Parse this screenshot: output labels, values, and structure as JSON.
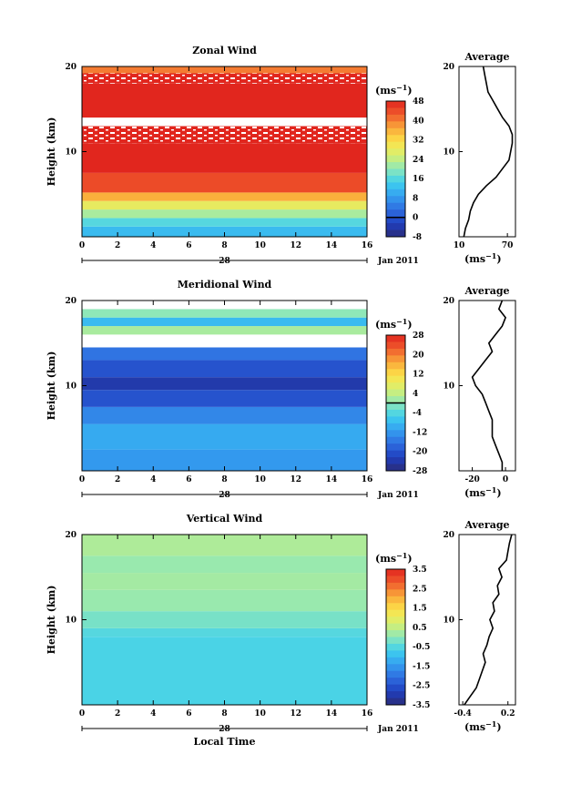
{
  "chart_data": [
    {
      "type": "heatmap",
      "title": "Zonal Wind",
      "ylabel": "Height (km)",
      "x_ticks": [
        "0",
        "2",
        "4",
        "6",
        "8",
        "10",
        "12",
        "14",
        "16"
      ],
      "y_ticks": [
        "10",
        "20"
      ],
      "xlim": [
        0,
        16
      ],
      "ylim": [
        0,
        20
      ],
      "date_day": "28",
      "date_label": "Jan 2011",
      "colorbar_unit": "(ms",
      "unit_exp": "−1",
      "colorbar_ticks": [
        "48",
        "40",
        "32",
        "24",
        "16",
        "8",
        "0",
        "-8"
      ],
      "colorbar_range": [
        -8,
        48
      ],
      "contour": "0",
      "bands": [
        {
          "from": 0,
          "to": 1.2,
          "value": 12
        },
        {
          "from": 1.2,
          "to": 2.2,
          "value": 16
        },
        {
          "from": 2.2,
          "to": 3.2,
          "value": 22
        },
        {
          "from": 3.2,
          "to": 4.2,
          "value": 28
        },
        {
          "from": 4.2,
          "to": 5.2,
          "value": 36
        },
        {
          "from": 5.2,
          "to": 7.5,
          "value": 44
        },
        {
          "from": 7.5,
          "to": 11,
          "value": 48
        },
        {
          "from": 11,
          "to": 13,
          "value": 48,
          "sparse": true
        },
        {
          "from": 13,
          "to": 14,
          "value": null
        },
        {
          "from": 14,
          "to": 18,
          "value": 48
        },
        {
          "from": 18,
          "to": 19.2,
          "value": 48,
          "sparse": true
        },
        {
          "from": 19.2,
          "to": 20,
          "value": 40
        }
      ],
      "average_profile": {
        "title": "Average",
        "x_ticks": [
          "10",
          "70"
        ],
        "xlim": [
          10,
          80
        ],
        "unit": "(ms",
        "unit_exp": "−1",
        "height": [
          0,
          1,
          2,
          3,
          4,
          5,
          6,
          7,
          8,
          9,
          10,
          11,
          12,
          13,
          14,
          15,
          16,
          17,
          18,
          19,
          20
        ],
        "values": [
          16,
          18,
          22,
          24,
          28,
          34,
          44,
          56,
          64,
          72,
          74,
          76,
          76,
          72,
          64,
          58,
          52,
          46,
          44,
          42,
          40
        ]
      }
    },
    {
      "type": "heatmap",
      "title": "Meridional Wind",
      "ylabel": "Height (km)",
      "x_ticks": [
        "0",
        "2",
        "4",
        "6",
        "8",
        "10",
        "12",
        "14",
        "16"
      ],
      "y_ticks": [
        "10",
        "20"
      ],
      "xlim": [
        0,
        16
      ],
      "ylim": [
        0,
        20
      ],
      "date_day": "28",
      "date_label": "Jan 2011",
      "colorbar_unit": "(ms",
      "unit_exp": "−1",
      "colorbar_ticks": [
        "28",
        "20",
        "12",
        "4",
        "-4",
        "-12",
        "-20",
        "-28"
      ],
      "colorbar_range": [
        -28,
        28
      ],
      "contour": "0",
      "bands": [
        {
          "from": 0,
          "to": 2.5,
          "value": -12
        },
        {
          "from": 2.5,
          "to": 5.5,
          "value": -10
        },
        {
          "from": 5.5,
          "to": 7.5,
          "value": -14
        },
        {
          "from": 7.5,
          "to": 9.5,
          "value": -20
        },
        {
          "from": 9.5,
          "to": 11,
          "value": -24
        },
        {
          "from": 11,
          "to": 13,
          "value": -20
        },
        {
          "from": 13,
          "to": 14.5,
          "value": -16
        },
        {
          "from": 14.5,
          "to": 16,
          "value": null
        },
        {
          "from": 16,
          "to": 17,
          "value": 2
        },
        {
          "from": 17,
          "to": 18,
          "value": -8
        },
        {
          "from": 18,
          "to": 19,
          "value": 0
        },
        {
          "from": 19,
          "to": 20,
          "value": null
        }
      ],
      "average_profile": {
        "title": "Average",
        "x_ticks": [
          "-20",
          "0"
        ],
        "xlim": [
          -28,
          6
        ],
        "unit": "(ms",
        "unit_exp": "−1",
        "height": [
          0,
          1,
          2,
          3,
          4,
          5,
          6,
          7,
          8,
          9,
          10,
          11,
          12,
          13,
          14,
          15,
          16,
          17,
          18,
          19,
          20
        ],
        "values": [
          -2,
          -2,
          -4,
          -6,
          -8,
          -8,
          -8,
          -10,
          -12,
          -14,
          -18,
          -20,
          -16,
          -12,
          -8,
          -10,
          -6,
          -2,
          0,
          -4,
          -2
        ]
      }
    },
    {
      "type": "heatmap",
      "title": "Vertical Wind",
      "xlabel": "Local Time",
      "ylabel": "Height (km)",
      "x_ticks": [
        "0",
        "2",
        "4",
        "6",
        "8",
        "10",
        "12",
        "14",
        "16"
      ],
      "y_ticks": [
        "10",
        "20"
      ],
      "xlim": [
        0,
        16
      ],
      "ylim": [
        0,
        20
      ],
      "date_day": "28",
      "date_label": "Jan 2011",
      "colorbar_unit": "(ms",
      "unit_exp": "−1",
      "colorbar_ticks": [
        "3.5",
        "2.5",
        "1.5",
        "0.5",
        "-0.5",
        "-1.5",
        "-2.5",
        "-3.5"
      ],
      "colorbar_range": [
        -3.5,
        3.5
      ],
      "bands": [
        {
          "from": 0,
          "to": 8,
          "value": -0.6
        },
        {
          "from": 8,
          "to": 9,
          "value": -0.5
        },
        {
          "from": 9,
          "to": 11,
          "value": -0.2
        },
        {
          "from": 11,
          "to": 13.5,
          "value": 0.1
        },
        {
          "from": 13.5,
          "to": 15.5,
          "value": 0.2
        },
        {
          "from": 15.5,
          "to": 17.5,
          "value": 0.1
        },
        {
          "from": 17.5,
          "to": 20,
          "value": 0.3
        }
      ],
      "average_profile": {
        "title": "Average",
        "x_ticks": [
          "-0.4",
          "0.2"
        ],
        "xlim": [
          -0.45,
          0.3
        ],
        "unit": "(ms",
        "unit_exp": "−1",
        "height": [
          0,
          1,
          2,
          3,
          4,
          5,
          6,
          7,
          8,
          9,
          10,
          11,
          12,
          13,
          14,
          15,
          16,
          17,
          18,
          19,
          20
        ],
        "values": [
          -0.38,
          -0.3,
          -0.22,
          -0.18,
          -0.14,
          -0.1,
          -0.13,
          -0.08,
          -0.05,
          0.0,
          -0.04,
          0.02,
          0.0,
          0.08,
          0.06,
          0.12,
          0.08,
          0.18,
          0.2,
          0.22,
          0.25
        ]
      }
    }
  ]
}
